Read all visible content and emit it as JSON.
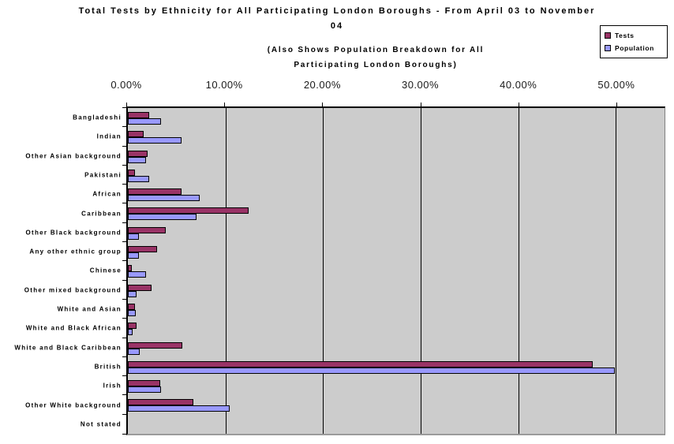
{
  "header": {
    "title_line1": "Total Tests by Ethnicity for All Participating London Boroughs -  From April 03 to November",
    "title_line2": "04",
    "subtitle_line1": "(Also Shows Population Breakdown for All",
    "subtitle_line2": "Participating London Boroughs)"
  },
  "legend": {
    "items": [
      {
        "label": "Tests",
        "color": "#993366"
      },
      {
        "label": "Population",
        "color": "#9999FF"
      }
    ]
  },
  "chart_data": {
    "type": "bar",
    "orientation": "horizontal",
    "title": "Total Tests by Ethnicity for All Participating London Boroughs - From April 03 to November 04",
    "subtitle": "(Also Shows Population Breakdown for All Participating London Boroughs)",
    "categories": [
      "Bangladeshi",
      "Indian",
      "Other Asian background",
      "Pakistani",
      "African",
      "Caribbean",
      "Other Black background",
      "Any other ethnic group",
      "Chinese",
      "Other mixed background",
      "White and Asian",
      "White and Black African",
      "White and Black Caribbean",
      "British",
      "Irish",
      "Other White background",
      "Not stated"
    ],
    "series": [
      {
        "name": "Tests",
        "color": "#993366",
        "values": [
          2.2,
          1.6,
          2.0,
          0.7,
          5.5,
          12.4,
          3.9,
          3.0,
          0.4,
          2.4,
          0.7,
          0.9,
          5.6,
          47.6,
          3.3,
          6.7,
          0
        ]
      },
      {
        "name": "Population",
        "color": "#9999FF",
        "values": [
          3.4,
          5.5,
          1.9,
          2.2,
          7.4,
          7.0,
          1.1,
          1.1,
          1.9,
          0.9,
          0.8,
          0.5,
          1.2,
          49.9,
          3.4,
          10.4,
          0
        ]
      }
    ],
    "x_axis": {
      "ticks": [
        "0.00%",
        "10.00%",
        "20.00%",
        "30.00%",
        "40.00%",
        "50.00%"
      ],
      "tick_values": [
        0,
        10,
        20,
        30,
        40,
        50
      ],
      "max": 55,
      "unit": "%"
    },
    "legend_position": "top-right",
    "plot_bg": "#CCCCCC",
    "grid": "vertical-major"
  }
}
